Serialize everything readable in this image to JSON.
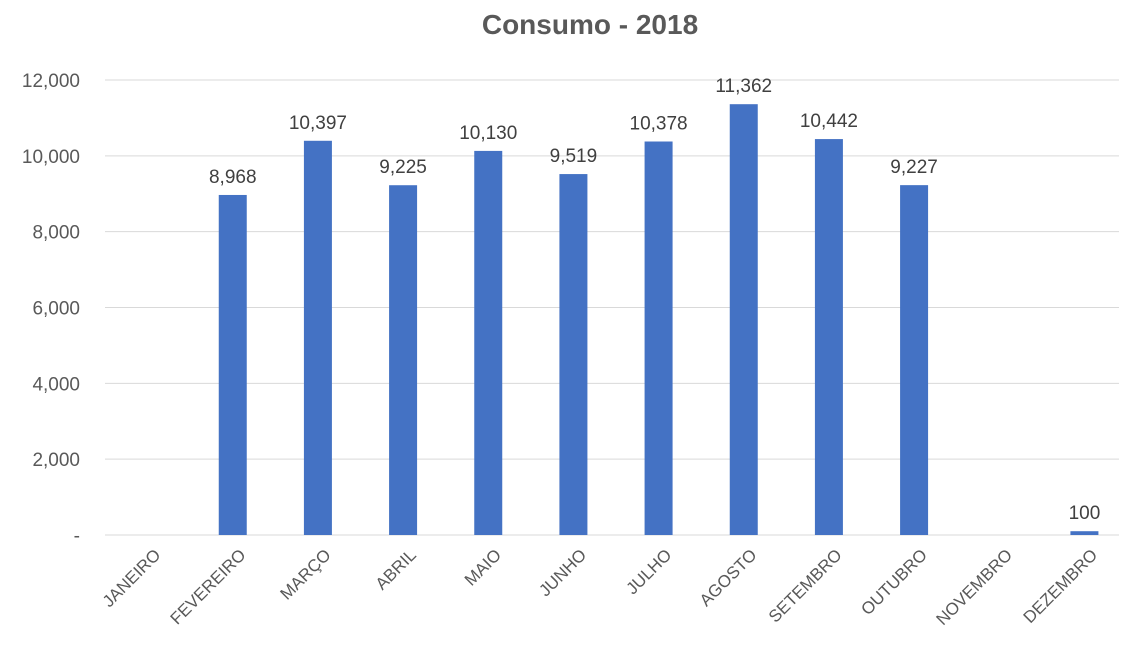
{
  "chart_data": {
    "type": "bar",
    "title": "Consumo - 2018",
    "xlabel": "",
    "ylabel": "",
    "categories": [
      "JANEIRO",
      "FEVEREIRO",
      "MARÇO",
      "ABRIL",
      "MAIO",
      "JUNHO",
      "JULHO",
      "AGOSTO",
      "SETEMBRO",
      "OUTUBRO",
      "NOVEMBRO",
      "DEZEMBRO"
    ],
    "values": [
      null,
      8968,
      10397,
      9225,
      10130,
      9519,
      10378,
      11362,
      10442,
      9227,
      null,
      100
    ],
    "data_labels": [
      "",
      "8,968",
      "10,397",
      "9,225",
      "10,130",
      "9,519",
      "10,378",
      "11,362",
      "10,442",
      "9,227",
      "",
      "100"
    ],
    "ylim": [
      0,
      12000
    ],
    "yticks": [
      0,
      2000,
      4000,
      6000,
      8000,
      10000,
      12000
    ],
    "ytick_labels": [
      "-",
      "2,000",
      "4,000",
      "6,000",
      "8,000",
      "10,000",
      "12,000"
    ],
    "grid": true,
    "legend": "none",
    "colors": {
      "bar": "#4472c4",
      "grid": "#d9d9d9",
      "text": "#595959"
    }
  }
}
